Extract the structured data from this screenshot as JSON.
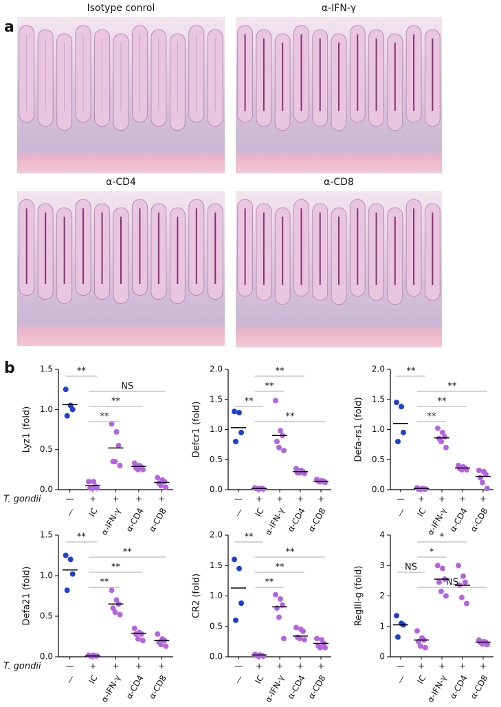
{
  "panel_a": {
    "label": "a",
    "images": [
      "Isotype conrol",
      "α-IFN-γ",
      "α-CD4",
      "α-CD8"
    ]
  },
  "panel_b": {
    "label": "b"
  },
  "chart_data": [
    {
      "type": "dot",
      "ylabel": "Lyz1 (fold)",
      "row_label": "T. gondii",
      "infection": [
        "—",
        "+",
        "+",
        "+",
        "+"
      ],
      "categories": [
        "—",
        "IC",
        "α-IFN-γ",
        "α-CD4",
        "α-CD8"
      ],
      "colors": [
        "#1f3fd0",
        "#b564e0",
        "#b564e0",
        "#b564e0",
        "#b564e0"
      ],
      "ylim": [
        0,
        1.5
      ],
      "yticks": [
        {
          "value": 0,
          "label": "0.0"
        },
        0.5,
        {
          "value": 1,
          "label": "1.0"
        },
        1.5
      ],
      "values": [
        [
          1.25,
          1.05,
          1.0,
          0.92
        ],
        [
          0.1,
          0.1,
          0.04,
          0.02,
          0.02,
          0.02
        ],
        [
          0.82,
          0.72,
          0.55,
          0.35,
          0.35,
          0.3
        ],
        [
          0.33,
          0.3,
          0.28,
          0.27,
          0.25,
          0.25
        ],
        [
          0.15,
          0.12,
          0.1,
          0.08,
          0.05,
          0.03
        ]
      ],
      "means": [
        1.06,
        0.05,
        0.52,
        0.29,
        0.09
      ],
      "comparisons": [
        {
          "from": "—",
          "to": "IC",
          "label": "**"
        },
        {
          "from": "IC",
          "to": "α-CD8",
          "label": "NS"
        },
        {
          "from": "IC",
          "to": "α-CD4",
          "label": "**"
        },
        {
          "from": "IC",
          "to": "α-IFN-γ",
          "label": "**"
        }
      ]
    },
    {
      "type": "dot",
      "ylabel": "Defcr1 (fold)",
      "infection": [
        "—",
        "+",
        "+",
        "+",
        "+"
      ],
      "categories": [
        "—",
        "IC",
        "α-IFN-γ",
        "α-CD4",
        "α-CD8"
      ],
      "colors": [
        "#1f3fd0",
        "#b564e0",
        "#b564e0",
        "#b564e0",
        "#b564e0"
      ],
      "ylim": [
        0,
        2
      ],
      "yticks": [
        {
          "value": 0,
          "label": "0.0"
        },
        0.5,
        {
          "value": 1,
          "label": "1.0"
        },
        1.5,
        {
          "value": 2,
          "label": "2.0"
        }
      ],
      "values": [
        [
          1.3,
          1.28,
          0.95,
          0.8
        ],
        [
          0.03,
          0.02,
          0.02,
          0.02,
          0.01,
          0.01
        ],
        [
          1.48,
          0.98,
          0.9,
          0.8,
          0.7,
          0.65
        ],
        [
          0.35,
          0.32,
          0.3,
          0.28,
          0.28,
          0.27
        ],
        [
          0.17,
          0.15,
          0.14,
          0.14,
          0.13,
          0.12
        ]
      ],
      "means": [
        1.03,
        0.02,
        0.9,
        0.3,
        0.14
      ],
      "comparisons": [
        {
          "from": "IC",
          "to": "α-CD4",
          "label": "**"
        },
        {
          "from": "IC",
          "to": "α-IFN-γ",
          "label": "**"
        },
        {
          "from": "—",
          "to": "IC",
          "label": "**"
        },
        {
          "from": "IC",
          "to": "α-CD8",
          "label": "**"
        }
      ]
    },
    {
      "type": "dot",
      "ylabel": "Defa-rs1 (fold)",
      "infection": [
        "—",
        "+",
        "+",
        "+",
        "+"
      ],
      "categories": [
        "—",
        "IC",
        "α-IFN-γ",
        "α-CD4",
        "α-CD8"
      ],
      "colors": [
        "#1f3fd0",
        "#b564e0",
        "#b564e0",
        "#b564e0",
        "#b564e0"
      ],
      "ylim": [
        0,
        2
      ],
      "yticks": [
        {
          "value": 0,
          "label": "0.0"
        },
        0.5,
        {
          "value": 1,
          "label": "1.0"
        },
        1.5,
        {
          "value": 2,
          "label": "2.0"
        }
      ],
      "values": [
        [
          1.45,
          1.38,
          0.95,
          0.8
        ],
        [
          0.03,
          0.02,
          0.01,
          0.01,
          0.01,
          0.01
        ],
        [
          1.02,
          0.95,
          0.88,
          0.85,
          0.8,
          0.7
        ],
        [
          0.4,
          0.38,
          0.36,
          0.35,
          0.33,
          0.33
        ],
        [
          0.32,
          0.3,
          0.25,
          0.2,
          0.12,
          0.02
        ]
      ],
      "means": [
        1.1,
        0.02,
        0.86,
        0.36,
        0.22
      ],
      "comparisons": [
        {
          "from": "—",
          "to": "IC",
          "label": "**"
        },
        {
          "from": "IC",
          "to": "α-CD8",
          "label": "**"
        },
        {
          "from": "IC",
          "to": "α-CD4",
          "label": "**"
        },
        {
          "from": "IC",
          "to": "α-IFN-γ",
          "label": "**"
        }
      ]
    },
    {
      "type": "dot",
      "ylabel": "Defa21 (fold)",
      "row_label": "T. gondii",
      "infection": [
        "—",
        "+",
        "+",
        "+",
        "+"
      ],
      "categories": [
        "—",
        "IC",
        "α-IFN-γ",
        "α-CD4",
        "α-CD8"
      ],
      "colors": [
        "#1f3fd0",
        "#b564e0",
        "#b564e0",
        "#b564e0",
        "#b564e0"
      ],
      "ylim": [
        0,
        1.5
      ],
      "yticks": [
        {
          "value": 0,
          "label": "0.0"
        },
        0.5,
        {
          "value": 1,
          "label": "1.0"
        },
        1.5
      ],
      "values": [
        [
          1.25,
          1.2,
          1.02,
          0.82
        ],
        [
          0.02,
          0.02,
          0.01,
          0.01,
          0.01,
          0.01
        ],
        [
          0.82,
          0.7,
          0.65,
          0.6,
          0.55,
          0.52
        ],
        [
          0.35,
          0.3,
          0.28,
          0.28,
          0.22,
          0.2
        ],
        [
          0.28,
          0.22,
          0.2,
          0.18,
          0.15,
          0.13
        ]
      ],
      "means": [
        1.07,
        0.01,
        0.65,
        0.29,
        0.2
      ],
      "comparisons": [
        {
          "from": "—",
          "to": "IC",
          "label": "**"
        },
        {
          "from": "IC",
          "to": "α-CD8",
          "label": "**"
        },
        {
          "from": "IC",
          "to": "α-CD4",
          "label": "**"
        },
        {
          "from": "IC",
          "to": "α-IFN-γ",
          "label": "**"
        }
      ]
    },
    {
      "type": "dot",
      "ylabel": "CR2 (fold)",
      "infection": [
        "—",
        "+",
        "+",
        "+",
        "+"
      ],
      "categories": [
        "—",
        "IC",
        "α-IFN-γ",
        "α-CD4",
        "α-CD8"
      ],
      "colors": [
        "#1f3fd0",
        "#b564e0",
        "#b564e0",
        "#b564e0",
        "#b564e0"
      ],
      "ylim": [
        0,
        2
      ],
      "yticks": [
        {
          "value": 0,
          "label": "0.0"
        },
        0.5,
        {
          "value": 1,
          "label": "1.0"
        },
        1.5,
        {
          "value": 2,
          "label": "2.0"
        }
      ],
      "values": [
        [
          1.6,
          1.45,
          0.88,
          0.6
        ],
        [
          0.04,
          0.03,
          0.02,
          0.02,
          0.01,
          0.01
        ],
        [
          1.02,
          0.95,
          0.85,
          0.8,
          0.65,
          0.3
        ],
        [
          0.48,
          0.45,
          0.42,
          0.32,
          0.3,
          0.28
        ],
        [
          0.3,
          0.28,
          0.22,
          0.18,
          0.15,
          0.15
        ]
      ],
      "means": [
        1.13,
        0.03,
        0.82,
        0.34,
        0.22
      ],
      "comparisons": [
        {
          "from": "—",
          "to": "IC",
          "label": "**"
        },
        {
          "from": "IC",
          "to": "α-CD8",
          "label": "**"
        },
        {
          "from": "IC",
          "to": "α-CD4",
          "label": "**"
        },
        {
          "from": "IC",
          "to": "α-IFN-γ",
          "label": "**"
        }
      ]
    },
    {
      "type": "dot",
      "ylabel": "RegIII-g (fold)",
      "infection": [
        "—",
        "+",
        "+",
        "+",
        "+"
      ],
      "categories": [
        "—",
        "IC",
        "α-IFN-γ",
        "α-CD4",
        "α-CD8"
      ],
      "colors": [
        "#1f3fd0",
        "#b564e0",
        "#b564e0",
        "#b564e0",
        "#b564e0"
      ],
      "ylim": [
        0,
        4
      ],
      "yticks": [
        0,
        1,
        2,
        3,
        4
      ],
      "values": [
        [
          1.35,
          1.1,
          1.05,
          0.65
        ],
        [
          0.85,
          0.62,
          0.55,
          0.5,
          0.35,
          0.3
        ],
        [
          3.0,
          2.9,
          2.55,
          2.45,
          2.15,
          2.0
        ],
        [
          3.0,
          2.65,
          2.45,
          2.35,
          1.95,
          1.75
        ],
        [
          0.55,
          0.5,
          0.48,
          0.47,
          0.42,
          0.4
        ]
      ],
      "means": [
        1.05,
        0.55,
        2.55,
        2.35,
        0.48
      ],
      "comparisons": [
        {
          "from": "IC",
          "to": "α-CD4",
          "label": "*"
        },
        {
          "from": "IC",
          "to": "α-IFN-γ",
          "label": "*"
        },
        {
          "from": "—",
          "to": "IC",
          "label": "NS"
        },
        {
          "from": "IC",
          "to": "α-CD8",
          "label": "NS"
        }
      ]
    }
  ]
}
